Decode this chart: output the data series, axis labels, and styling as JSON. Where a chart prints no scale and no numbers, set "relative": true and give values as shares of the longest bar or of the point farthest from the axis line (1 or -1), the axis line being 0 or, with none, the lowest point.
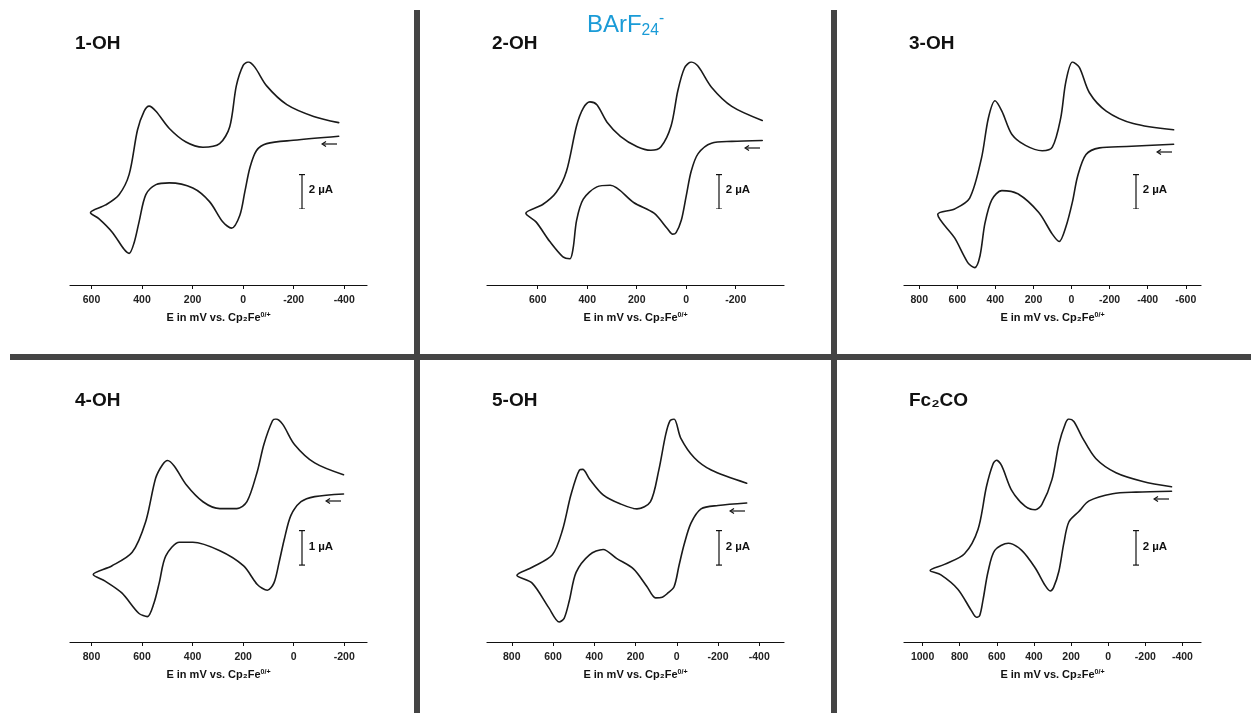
{
  "chart_data": [
    {
      "type": "line",
      "title": "1-OH",
      "xlabel": "E in mV vs. Cp₂Fe$^{0/+}$",
      "relative": true,
      "xlim": [
        685,
        -490
      ],
      "xticks": [
        600,
        400,
        200,
        0,
        -200,
        -400
      ],
      "grid": false,
      "marker": "none",
      "line_style": "solid",
      "annotations": [
        "2 µA"
      ],
      "series": [
        {
          "color": "#1a1a1a",
          "x": [
            -378,
            -199,
            -93,
            -53,
            -27,
            -7,
            13,
            46,
            80,
            133,
            199,
            292,
            345,
            385,
            412,
            431,
            451,
            471,
            518,
            571,
            604,
            544,
            491,
            451,
            418,
            392,
            372,
            345,
            292,
            226,
            159,
            93,
            53,
            27,
            0,
            -20,
            -46,
            -93,
            -173,
            -279,
            -378
          ],
          "values": [
            0.667,
            0.649,
            0.634,
            0.603,
            0.527,
            0.42,
            0.313,
            0.255,
            0.282,
            0.374,
            0.435,
            0.458,
            0.45,
            0.405,
            0.282,
            0.191,
            0.142,
            0.16,
            0.237,
            0.298,
            0.324,
            0.359,
            0.405,
            0.496,
            0.695,
            0.779,
            0.802,
            0.779,
            0.702,
            0.641,
            0.618,
            0.634,
            0.71,
            0.893,
            0.985,
            1,
            0.977,
            0.893,
            0.809,
            0.756,
            0.728
          ]
        }
      ]
    },
    {
      "type": "line",
      "title": "2-OH",
      "subtitle": "BArF$_{24}$$^{-}$",
      "xlabel": "E in mV vs. Cp₂Fe$^{0/+}$",
      "relative": true,
      "xlim": [
        805,
        -395
      ],
      "xticks": [
        600,
        400,
        200,
        0,
        -200
      ],
      "grid": false,
      "marker": "none",
      "line_style": "solid",
      "annotations": [
        "2 µA"
      ],
      "series": [
        {
          "color": "#1a1a1a",
          "x": [
            -307,
            -184,
            -102,
            -48,
            -20,
            0,
            20,
            41,
            55,
            75,
            130,
            211,
            307,
            361,
            416,
            443,
            457,
            470,
            498,
            552,
            607,
            648,
            580,
            525,
            484,
            443,
            416,
            389,
            361,
            320,
            266,
            198,
            143,
            102,
            61,
            34,
            7,
            -20,
            -48,
            -102,
            -184,
            -307
          ],
          "values": [
            0.648,
            0.644,
            0.636,
            0.589,
            0.51,
            0.4,
            0.29,
            0.235,
            0.228,
            0.251,
            0.322,
            0.369,
            0.447,
            0.44,
            0.385,
            0.29,
            0.165,
            0.118,
            0.126,
            0.196,
            0.283,
            0.322,
            0.361,
            0.416,
            0.51,
            0.714,
            0.793,
            0.821,
            0.808,
            0.73,
            0.667,
            0.62,
            0.604,
            0.62,
            0.714,
            0.871,
            0.973,
            1,
            0.981,
            0.887,
            0.801,
            0.738
          ]
        }
      ]
    },
    {
      "type": "line",
      "title": "3-OH",
      "xlabel": "E in mV vs. Cp₂Fe$^{0/+}$",
      "relative": true,
      "xlim": [
        880,
        -680
      ],
      "xticks": [
        800,
        600,
        400,
        200,
        0,
        -200,
        -400,
        -600
      ],
      "grid": false,
      "marker": "none",
      "line_style": "solid",
      "annotations": [
        "2 µA"
      ],
      "series": [
        {
          "color": "#1a1a1a",
          "x": [
            -536,
            -289,
            -147,
            -76,
            -32,
            -5,
            30,
            65,
            101,
            172,
            278,
            366,
            419,
            455,
            481,
            508,
            543,
            614,
            703,
            614,
            535,
            473,
            437,
            402,
            366,
            313,
            242,
            154,
            101,
            57,
            30,
            -5,
            -41,
            -94,
            -182,
            -324,
            -536
          ],
          "values": [
            0.631,
            0.621,
            0.615,
            0.585,
            0.488,
            0.374,
            0.26,
            0.195,
            0.228,
            0.325,
            0.407,
            0.423,
            0.382,
            0.276,
            0.13,
            0.078,
            0.098,
            0.211,
            0.317,
            0.341,
            0.39,
            0.569,
            0.748,
            0.826,
            0.78,
            0.675,
            0.626,
            0.602,
            0.618,
            0.748,
            0.911,
            1,
            0.976,
            0.862,
            0.78,
            0.724,
            0.696
          ]
        }
      ]
    },
    {
      "type": "line",
      "title": "4-OH",
      "xlabel": "E in mV vs. Cp₂Fe$^{0/+}$",
      "relative": true,
      "xlim": [
        885,
        -290
      ],
      "xticks": [
        800,
        600,
        400,
        200,
        0,
        -200
      ],
      "grid": false,
      "marker": "none",
      "line_style": "solid",
      "annotations": [
        "1 µA"
      ],
      "series": [
        {
          "color": "#1a1a1a",
          "x": [
            -197,
            -83,
            -29,
            11,
            37,
            58,
            78,
            104,
            144,
            198,
            292,
            399,
            452,
            506,
            532,
            553,
            579,
            613,
            680,
            746,
            793,
            720,
            639,
            586,
            546,
            519,
            499,
            472,
            425,
            359,
            292,
            225,
            185,
            144,
            118,
            84,
            71,
            44,
            -3,
            -83,
            -197
          ],
          "values": [
            0.664,
            0.652,
            0.629,
            0.568,
            0.462,
            0.356,
            0.265,
            0.232,
            0.258,
            0.341,
            0.409,
            0.447,
            0.447,
            0.386,
            0.265,
            0.174,
            0.114,
            0.129,
            0.22,
            0.273,
            0.303,
            0.341,
            0.402,
            0.538,
            0.735,
            0.795,
            0.814,
            0.788,
            0.705,
            0.629,
            0.598,
            0.598,
            0.629,
            0.765,
            0.886,
            0.992,
            1,
            0.977,
            0.886,
            0.803,
            0.75
          ]
        }
      ]
    },
    {
      "type": "line",
      "title": "5-OH",
      "xlabel": "E in mV vs. Cp₂Fe$^{0/+}$",
      "relative": true,
      "xlim": [
        920,
        -520
      ],
      "xticks": [
        800,
        600,
        400,
        200,
        0,
        -200,
        -400
      ],
      "grid": false,
      "marker": "none",
      "line_style": "solid",
      "annotations": [
        "2 µA"
      ],
      "series": [
        {
          "color": "#1a1a1a",
          "x": [
            -339,
            -200,
            -118,
            -69,
            -36,
            -11,
            13,
            46,
            70,
            103,
            144,
            210,
            292,
            357,
            423,
            488,
            521,
            546,
            570,
            620,
            701,
            775,
            701,
            603,
            554,
            513,
            472,
            456,
            423,
            357,
            275,
            193,
            128,
            87,
            54,
            33,
            13,
            -20,
            -85,
            -167,
            -339
          ],
          "values": [
            0.623,
            0.612,
            0.597,
            0.533,
            0.438,
            0.343,
            0.248,
            0.217,
            0.201,
            0.198,
            0.248,
            0.328,
            0.375,
            0.415,
            0.391,
            0.312,
            0.185,
            0.106,
            0.09,
            0.153,
            0.264,
            0.299,
            0.335,
            0.391,
            0.502,
            0.66,
            0.771,
            0.774,
            0.731,
            0.66,
            0.62,
            0.597,
            0.628,
            0.771,
            0.929,
            0.992,
            1,
            0.913,
            0.826,
            0.771,
            0.712
          ]
        }
      ]
    },
    {
      "type": "line",
      "title": "Fc₂CO",
      "xlabel": "E in mV vs. Cp₂Fe$^{0/+}$",
      "relative": true,
      "xlim": [
        1100,
        -500
      ],
      "xticks": [
        1000,
        800,
        600,
        400,
        200,
        0,
        -200,
        -400
      ],
      "grid": false,
      "marker": "none",
      "line_style": "solid",
      "annotations": [
        "2 µA"
      ],
      "series": [
        {
          "color": "#1a1a1a",
          "x": [
            -341,
            -150,
            -24,
            103,
            158,
            212,
            239,
            266,
            294,
            312,
            339,
            393,
            466,
            538,
            611,
            647,
            674,
            692,
            710,
            738,
            810,
            901,
            959,
            882,
            774,
            701,
            656,
            620,
            602,
            574,
            520,
            448,
            393,
            357,
            303,
            266,
            230,
            212,
            185,
            140,
            67,
            -42,
            -187,
            -341
          ],
          "values": [
            0.676,
            0.672,
            0.665,
            0.633,
            0.585,
            0.538,
            0.443,
            0.316,
            0.245,
            0.229,
            0.253,
            0.332,
            0.411,
            0.443,
            0.411,
            0.316,
            0.19,
            0.119,
            0.111,
            0.142,
            0.237,
            0.301,
            0.321,
            0.348,
            0.396,
            0.506,
            0.696,
            0.799,
            0.815,
            0.791,
            0.68,
            0.609,
            0.593,
            0.617,
            0.728,
            0.886,
            0.981,
            1,
            0.989,
            0.918,
            0.823,
            0.759,
            0.72,
            0.696
          ]
        }
      ]
    }
  ]
}
